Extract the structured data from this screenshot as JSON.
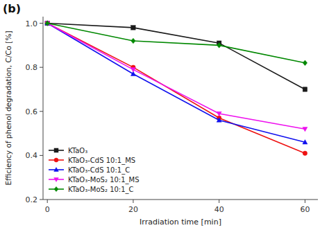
{
  "chart_data": {
    "type": "line",
    "x": [
      0,
      20,
      40,
      60
    ],
    "series": [
      {
        "name": "KTaO₃",
        "color": "#1a1a1a",
        "marker": "square",
        "values": [
          1.0,
          0.98,
          0.91,
          0.7
        ]
      },
      {
        "name": "KTaO₃-CdS 10:1_MS",
        "color": "#ee1111",
        "marker": "circle",
        "values": [
          1.0,
          0.8,
          0.57,
          0.41
        ]
      },
      {
        "name": "KTaO₃-CdS 10:1_C",
        "color": "#1111ee",
        "marker": "triangle-up",
        "values": [
          1.0,
          0.77,
          0.56,
          0.46
        ]
      },
      {
        "name": "KTaO₃-MoS₂ 10:1_MS",
        "color": "#ee11ee",
        "marker": "triangle-down",
        "values": [
          1.0,
          0.79,
          0.59,
          0.52
        ]
      },
      {
        "name": "KTaO₃-MoS₂ 10:1_C",
        "color": "#008800",
        "marker": "diamond",
        "values": [
          1.0,
          0.92,
          0.9,
          0.82
        ]
      }
    ],
    "x_label": "Irradiation time [min]",
    "y_label": "Efficiency of phenol degradation, C/Co [%]",
    "xlim": [
      -1,
      63
    ],
    "ylim": [
      0.2,
      1.03
    ],
    "xticks": [
      0,
      20,
      40,
      60
    ],
    "yticks": [
      0.2,
      0.4,
      0.6,
      0.8,
      {
        "value": 1.0,
        "label": "1.0"
      }
    ],
    "annotations": [
      "(b)"
    ],
    "legend": "lower left",
    "grid": false
  }
}
